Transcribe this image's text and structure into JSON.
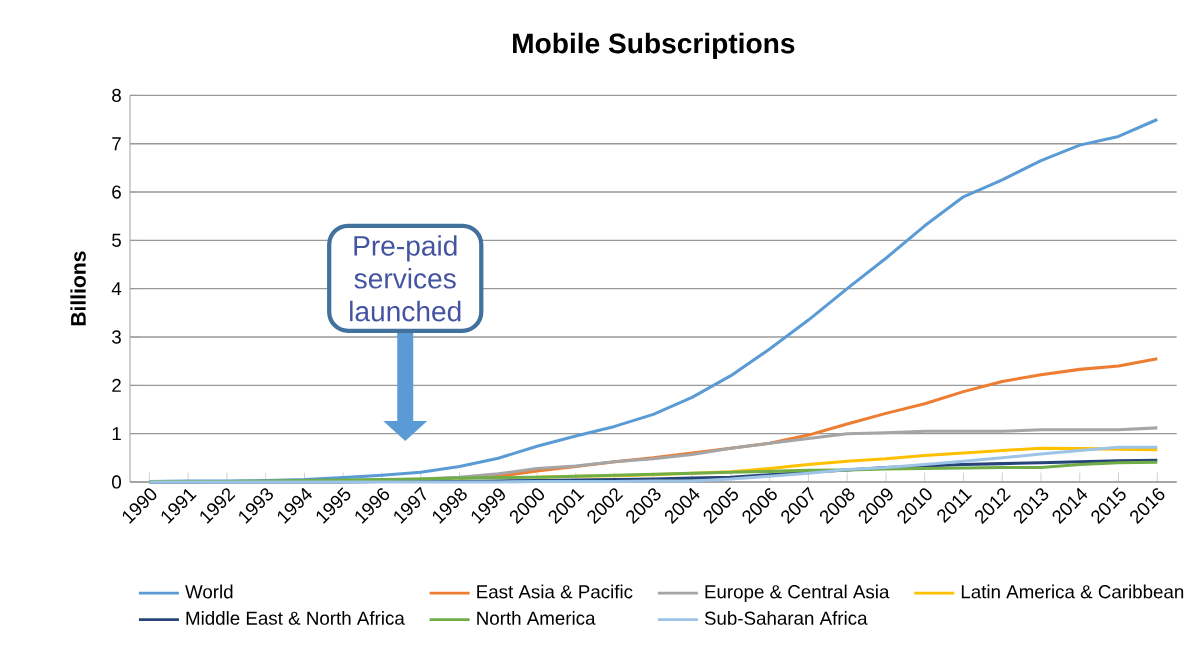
{
  "chart_data": {
    "type": "line",
    "title": "Mobile Subscriptions",
    "ylabel": "Billions",
    "categories": [
      "1990",
      "1991",
      "1992",
      "1993",
      "1994",
      "1995",
      "1996",
      "1997",
      "1998",
      "1999",
      "2000",
      "2001",
      "2002",
      "2003",
      "2004",
      "2005",
      "2006",
      "2007",
      "2008",
      "2009",
      "2010",
      "2011",
      "2012",
      "2013",
      "2014",
      "2015",
      "2016"
    ],
    "series": [
      {
        "name": "World",
        "color": "#5b9bd5",
        "values": [
          0.01,
          0.02,
          0.02,
          0.03,
          0.05,
          0.09,
          0.14,
          0.2,
          0.32,
          0.49,
          0.74,
          0.95,
          1.15,
          1.4,
          1.75,
          2.2,
          2.75,
          3.35,
          4.0,
          4.63,
          5.3,
          5.9,
          6.25,
          6.65,
          6.97,
          7.15,
          7.5
        ]
      },
      {
        "name": "East Asia & Pacific",
        "color": "#ed7d31",
        "values": [
          null,
          null,
          null,
          null,
          null,
          null,
          null,
          null,
          0.08,
          0.12,
          0.23,
          0.32,
          0.42,
          0.5,
          0.6,
          0.7,
          0.8,
          0.97,
          1.2,
          1.42,
          1.62,
          1.87,
          2.08,
          2.22,
          2.33,
          2.4,
          2.55
        ]
      },
      {
        "name": "Europe & Central Asia",
        "color": "#a5a5a5",
        "values": [
          0,
          0,
          0.01,
          0.01,
          0.02,
          0.03,
          0.04,
          0.06,
          0.1,
          0.17,
          0.28,
          0.33,
          0.42,
          0.48,
          0.57,
          0.7,
          0.8,
          0.9,
          1.0,
          1.02,
          1.05,
          1.05,
          1.05,
          1.08,
          1.08,
          1.08,
          1.12
        ]
      },
      {
        "name": "Latin America & Caribbean",
        "color": "#ffc000",
        "values": [
          null,
          null,
          null,
          null,
          null,
          null,
          null,
          null,
          null,
          null,
          0.1,
          0.12,
          0.13,
          0.15,
          0.18,
          0.21,
          0.28,
          0.36,
          0.43,
          0.48,
          0.55,
          0.6,
          0.65,
          0.7,
          0.69,
          0.68,
          0.67
        ]
      },
      {
        "name": "Middle East & North Africa",
        "color": "#264478",
        "values": [
          0,
          0,
          0,
          0,
          0,
          0,
          0.01,
          0.01,
          0.01,
          0.02,
          0.03,
          0.04,
          0.05,
          0.06,
          0.08,
          0.1,
          0.15,
          0.2,
          0.25,
          0.3,
          0.33,
          0.36,
          0.38,
          0.4,
          0.42,
          0.44,
          0.45
        ]
      },
      {
        "name": "North America",
        "color": "#70ad47",
        "values": [
          0.01,
          0.01,
          0.01,
          0.02,
          0.03,
          0.04,
          0.05,
          0.06,
          0.08,
          0.09,
          0.1,
          0.12,
          0.14,
          0.16,
          0.18,
          0.2,
          0.22,
          0.24,
          0.25,
          0.27,
          0.28,
          0.29,
          0.3,
          0.3,
          0.36,
          0.4,
          0.41
        ]
      },
      {
        "name": "Sub-Saharan Africa",
        "color": "#9dc3e6",
        "values": [
          0,
          0,
          0,
          0,
          0,
          0,
          0,
          0,
          0,
          0,
          0.01,
          0.01,
          0.01,
          0.02,
          0.02,
          0.06,
          0.12,
          0.18,
          0.26,
          0.3,
          0.36,
          0.43,
          0.5,
          0.58,
          0.65,
          0.72,
          0.72
        ]
      }
    ],
    "ylim": [
      0,
      8
    ],
    "yticks": [
      0,
      1,
      2,
      3,
      4,
      5,
      6,
      7,
      8
    ],
    "grid": "y",
    "legend": "bottom",
    "marker": "none",
    "line_style": "solid",
    "annotations": [
      "Pre-paid services launched"
    ]
  }
}
